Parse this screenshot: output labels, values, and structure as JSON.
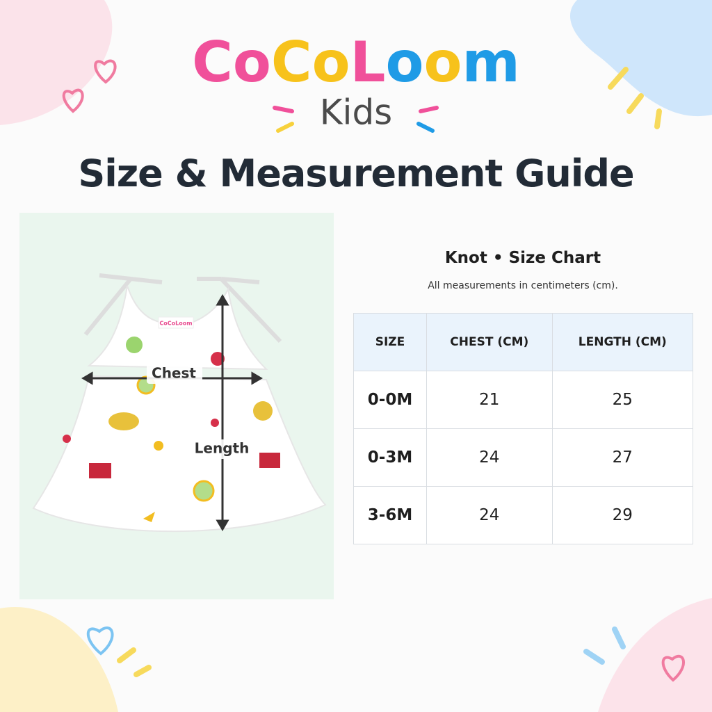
{
  "header": {
    "brand": "CoCoLoom",
    "sub_brand": "Kids",
    "title": "Size & Measurement Guide"
  },
  "product_image": {
    "tag_label": "CoCoLoom",
    "chest_label": "Chest",
    "length_label": "Length"
  },
  "size_chart": {
    "title": "Knot • Size Chart",
    "subtitle": "All measurements in centimeters (cm).",
    "columns": [
      "SIZE",
      "CHEST (CM)",
      "LENGTH (CM)"
    ],
    "rows": [
      [
        "0-0M",
        "21",
        "25"
      ],
      [
        "0-3M",
        "24",
        "27"
      ],
      [
        "3-6M",
        "24",
        "29"
      ]
    ]
  }
}
